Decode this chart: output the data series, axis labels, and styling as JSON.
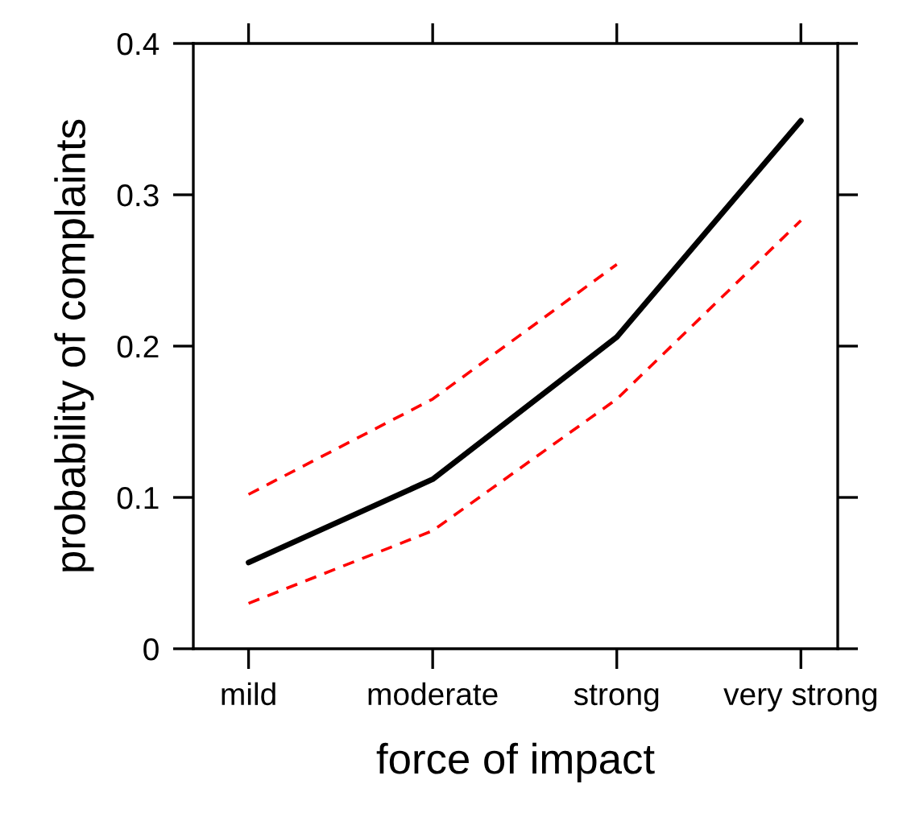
{
  "chart_data": {
    "type": "line",
    "xlabel": "force of impact",
    "ylabel": "probability of complaints",
    "categories": [
      "mild",
      "moderate",
      "strong",
      "very strong"
    ],
    "ylim": [
      0,
      0.4
    ],
    "yticks": [
      0,
      0.1,
      0.2,
      0.3,
      0.4
    ],
    "grid": false,
    "series": [
      {
        "color": "#000000",
        "line_style": "solid",
        "values": [
          0.057,
          0.112,
          0.206,
          0.349
        ]
      },
      {
        "color": "#ff0000",
        "line_style": "dashed",
        "values": [
          0.03,
          0.078,
          0.165,
          0.283
        ]
      },
      {
        "color": "#ff0000",
        "line_style": "dashed",
        "values": [
          0.102,
          0.165,
          0.254,
          null
        ]
      }
    ]
  }
}
